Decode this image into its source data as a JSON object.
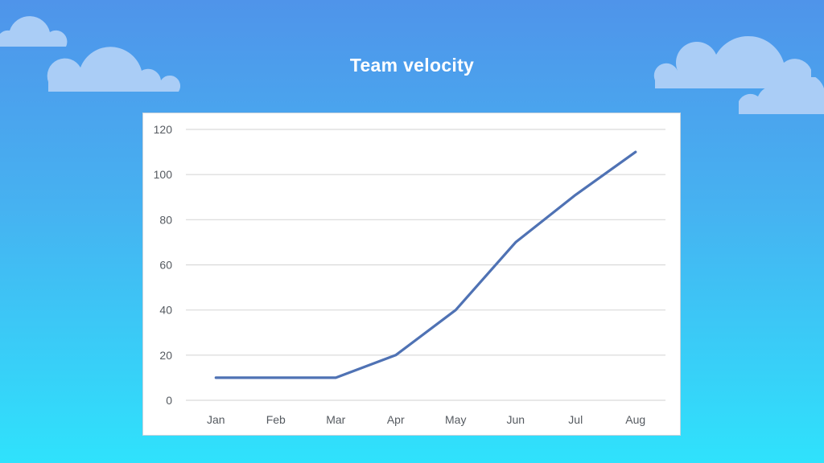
{
  "slide": {
    "title": "Team velocity"
  },
  "colors": {
    "background_top": "#4f94ea",
    "background_bottom": "#2fe2fc",
    "cloud": "#aacdf6",
    "line": "#4f72b4",
    "gridline": "#d9d9d9"
  },
  "chart_data": {
    "type": "line",
    "categories": [
      "Jan",
      "Feb",
      "Mar",
      "Apr",
      "May",
      "Jun",
      "Jul",
      "Aug"
    ],
    "series": [
      {
        "values": [
          10,
          10,
          10,
          20,
          40,
          70,
          91,
          110
        ]
      }
    ],
    "title": "",
    "xlabel": "",
    "ylabel": "",
    "ylim": [
      0,
      120
    ],
    "yticks": [
      "0",
      "20",
      "40",
      "60",
      "80",
      "100",
      "120"
    ],
    "grid": true,
    "legend": "none"
  }
}
